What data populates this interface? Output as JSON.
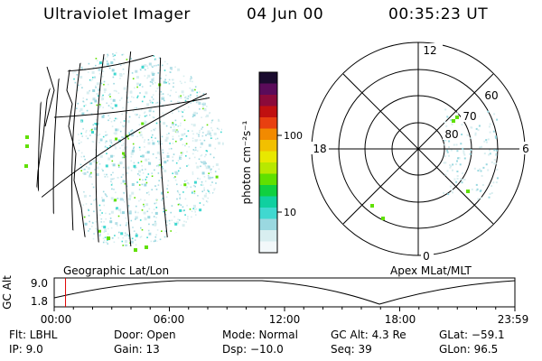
{
  "header": {
    "instrument": "Ultraviolet Imager",
    "date": "04 Jun 00",
    "time": "00:35:23 UT"
  },
  "left_panel": {
    "caption": "Geographic Lat/Lon"
  },
  "right_panel": {
    "caption": "Apex MLat/MLT",
    "mlt_labels": [
      "12",
      "18",
      "6",
      "0"
    ],
    "lat_labels": [
      "60",
      "70",
      "80"
    ]
  },
  "colorbar": {
    "label": "photon cm⁻²s⁻¹",
    "ticks": [
      "100",
      "10"
    ],
    "colors": [
      "#1a0b2e",
      "#5a0b5a",
      "#8b0a3a",
      "#c01010",
      "#e84010",
      "#f28a00",
      "#f2c000",
      "#e8e800",
      "#b8e800",
      "#60e000",
      "#10d040",
      "#10d0a0",
      "#40d8d0",
      "#9ad8e0",
      "#d8eef0",
      "#f2f8fa"
    ]
  },
  "timeline": {
    "y_axis_label": "GC Alt",
    "y_ticks": [
      "9.0",
      "1.8"
    ],
    "x_ticks": [
      "00:00",
      "06:00",
      "12:00",
      "18:00",
      "23:59"
    ],
    "marker_time_hours": 0.59
  },
  "info": {
    "flt": "Flt: LBHL",
    "ip": "IP:  9.0",
    "door": "Door: Open",
    "gain": "Gain: 13",
    "mode": "Mode: Normal",
    "dsp": "Dsp:  −10.0",
    "gcalt": "GC Alt: 4.3 Re",
    "seq": "Seq: 39",
    "glat": "GLat:  −59.1",
    "glon": "GLon:  96.5"
  },
  "colors": {
    "marker": "#e00000",
    "specks": [
      "#9ad8e0",
      "#40d8d0",
      "#10d0a0",
      "#60e000",
      "#d8eef0",
      "#b8e0e8"
    ]
  }
}
